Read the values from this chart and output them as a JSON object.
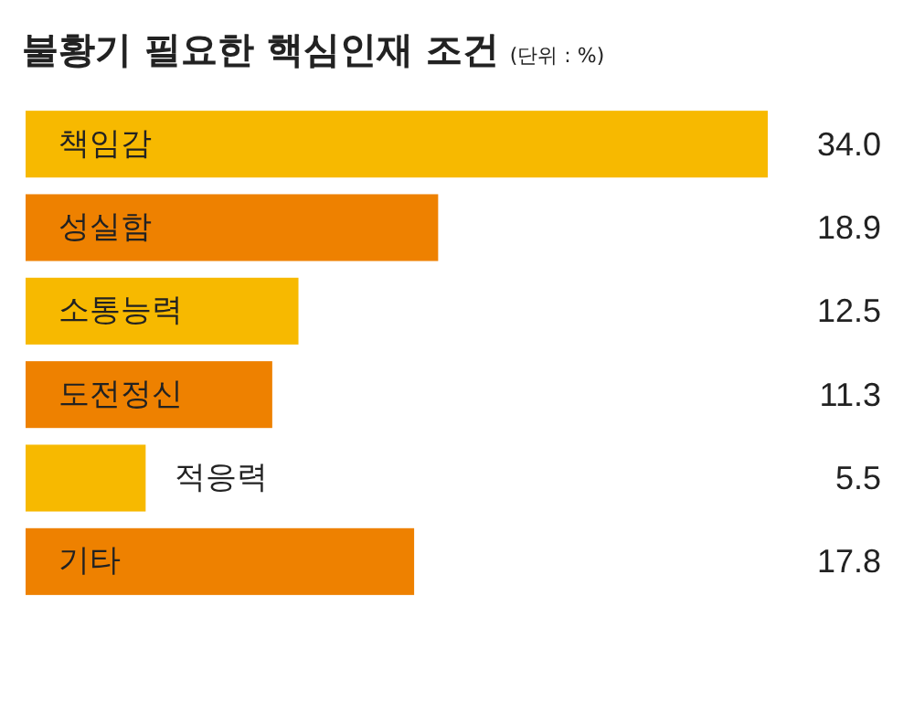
{
  "chart_data": {
    "type": "bar",
    "orientation": "horizontal",
    "title": "불황기 필요한 핵심인재 조건",
    "subtitle": "(단위 : %)",
    "categories": [
      "책임감",
      "성실함",
      "소통능력",
      "도전정신",
      "적응력",
      "기타"
    ],
    "values": [
      34.0,
      18.9,
      12.5,
      11.3,
      5.5,
      17.8
    ],
    "value_labels": [
      "34.0",
      "18.9",
      "12.5",
      "11.3",
      "5.5",
      "17.8"
    ],
    "colors": [
      "#f7b900",
      "#ee8100",
      "#f7b900",
      "#ee8100",
      "#f7b900",
      "#ee8100"
    ]
  }
}
